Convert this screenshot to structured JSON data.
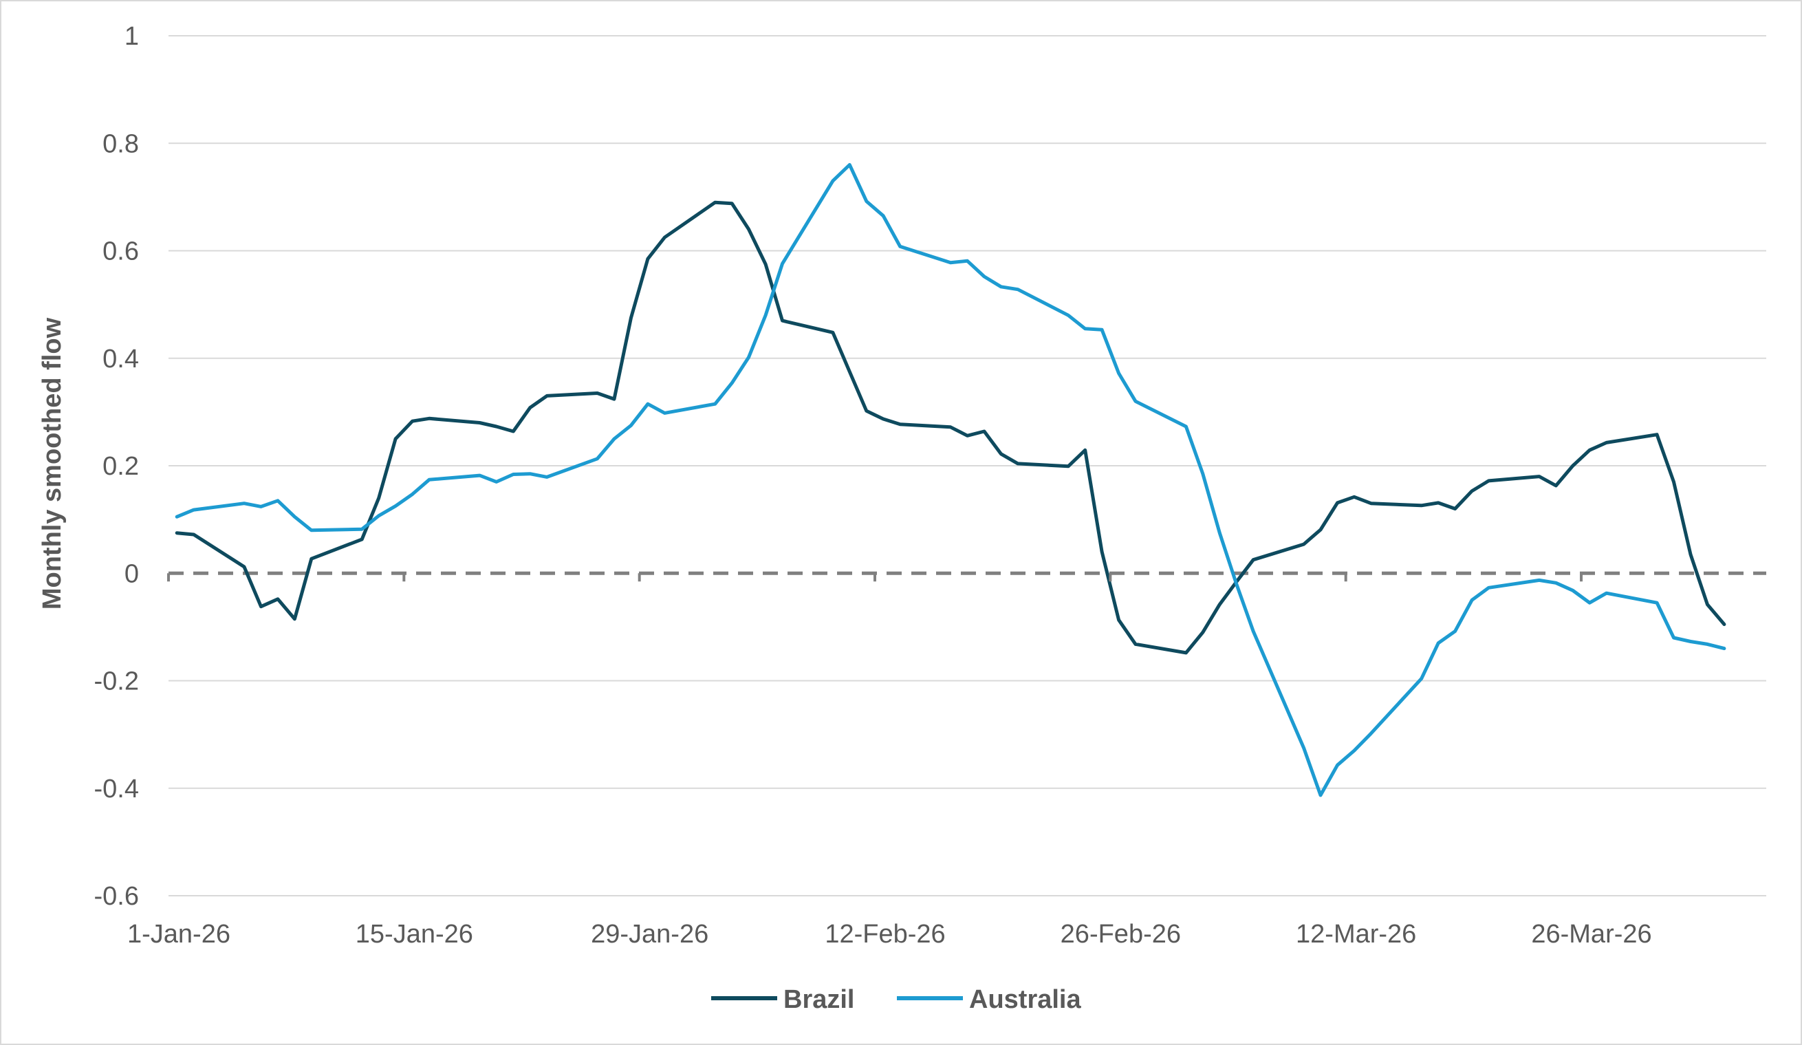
{
  "chart_data": {
    "type": "line",
    "title": "",
    "xlabel": "",
    "ylabel": "Monthly smoothed flow",
    "ylim": [
      -0.6,
      1
    ],
    "yticks": [
      1,
      0.8,
      0.6,
      0.4,
      0.2,
      0,
      -0.2,
      -0.4,
      -0.6
    ],
    "ytick_labels": [
      "1",
      "0.8",
      "0.6",
      "0.4",
      "0.2",
      "0",
      "-0.2",
      "-0.4",
      "-0.6"
    ],
    "xlim": [
      "2026-01-01",
      "2026-04-06"
    ],
    "xticks": [
      "2026-01-01",
      "2026-01-15",
      "2026-01-29",
      "2026-02-12",
      "2026-02-26",
      "2026-03-12",
      "2026-03-26"
    ],
    "xtick_labels": [
      "1-Jan-26",
      "15-Jan-26",
      "29-Jan-26",
      "12-Feb-26",
      "26-Feb-26",
      "12-Mar-26",
      "26-Mar-26"
    ],
    "grid": true,
    "zero_line": "dashed",
    "legend_position": "bottom",
    "series": [
      {
        "name": "Brazil",
        "color": "#0e4a5e",
        "points": [
          [
            "2026-01-01",
            0.075
          ],
          [
            "2026-01-02",
            0.072
          ],
          [
            "2026-01-05",
            0.012
          ],
          [
            "2026-01-06",
            -0.062
          ],
          [
            "2026-01-07",
            -0.048
          ],
          [
            "2026-01-08",
            -0.085
          ],
          [
            "2026-01-09",
            0.027
          ],
          [
            "2026-01-12",
            0.063
          ],
          [
            "2026-01-13",
            0.14
          ],
          [
            "2026-01-14",
            0.25
          ],
          [
            "2026-01-15",
            0.283
          ],
          [
            "2026-01-16",
            0.288
          ],
          [
            "2026-01-19",
            0.28
          ],
          [
            "2026-01-20",
            0.273
          ],
          [
            "2026-01-21",
            0.264
          ],
          [
            "2026-01-22",
            0.308
          ],
          [
            "2026-01-23",
            0.33
          ],
          [
            "2026-01-26",
            0.335
          ],
          [
            "2026-01-27",
            0.324
          ],
          [
            "2026-01-28",
            0.475
          ],
          [
            "2026-01-29",
            0.585
          ],
          [
            "2026-01-30",
            0.625
          ],
          [
            "2026-02-02",
            0.69
          ],
          [
            "2026-02-03",
            0.688
          ],
          [
            "2026-02-04",
            0.64
          ],
          [
            "2026-02-05",
            0.575
          ],
          [
            "2026-02-06",
            0.47
          ],
          [
            "2026-02-09",
            0.448
          ],
          [
            "2026-02-10",
            0.375
          ],
          [
            "2026-02-11",
            0.302
          ],
          [
            "2026-02-12",
            0.287
          ],
          [
            "2026-02-13",
            0.277
          ],
          [
            "2026-02-16",
            0.272
          ],
          [
            "2026-02-17",
            0.256
          ],
          [
            "2026-02-18",
            0.264
          ],
          [
            "2026-02-19",
            0.222
          ],
          [
            "2026-02-20",
            0.204
          ],
          [
            "2026-02-23",
            0.199
          ],
          [
            "2026-02-24",
            0.229
          ],
          [
            "2026-02-25",
            0.04
          ],
          [
            "2026-02-26",
            -0.087
          ],
          [
            "2026-02-27",
            -0.132
          ],
          [
            "2026-03-02",
            -0.148
          ],
          [
            "2026-03-03",
            -0.11
          ],
          [
            "2026-03-04",
            -0.058
          ],
          [
            "2026-03-05",
            -0.016
          ],
          [
            "2026-03-06",
            0.025
          ],
          [
            "2026-03-09",
            0.054
          ],
          [
            "2026-03-10",
            0.081
          ],
          [
            "2026-03-11",
            0.131
          ],
          [
            "2026-03-12",
            0.142
          ],
          [
            "2026-03-13",
            0.13
          ],
          [
            "2026-03-16",
            0.126
          ],
          [
            "2026-03-17",
            0.131
          ],
          [
            "2026-03-18",
            0.12
          ],
          [
            "2026-03-19",
            0.153
          ],
          [
            "2026-03-20",
            0.172
          ],
          [
            "2026-03-23",
            0.18
          ],
          [
            "2026-03-24",
            0.163
          ],
          [
            "2026-03-25",
            0.2
          ],
          [
            "2026-03-26",
            0.229
          ],
          [
            "2026-03-27",
            0.243
          ],
          [
            "2026-03-30",
            0.258
          ],
          [
            "2026-03-31",
            0.17
          ],
          [
            "2026-04-01",
            0.035
          ],
          [
            "2026-04-02",
            -0.058
          ],
          [
            "2026-04-03",
            -0.095
          ]
        ]
      },
      {
        "name": "Australia",
        "color": "#1d9bd1",
        "points": [
          [
            "2026-01-01",
            0.105
          ],
          [
            "2026-01-02",
            0.118
          ],
          [
            "2026-01-05",
            0.13
          ],
          [
            "2026-01-06",
            0.124
          ],
          [
            "2026-01-07",
            0.135
          ],
          [
            "2026-01-08",
            0.105
          ],
          [
            "2026-01-09",
            0.08
          ],
          [
            "2026-01-12",
            0.082
          ],
          [
            "2026-01-13",
            0.107
          ],
          [
            "2026-01-14",
            0.125
          ],
          [
            "2026-01-15",
            0.147
          ],
          [
            "2026-01-16",
            0.174
          ],
          [
            "2026-01-19",
            0.182
          ],
          [
            "2026-01-20",
            0.17
          ],
          [
            "2026-01-21",
            0.184
          ],
          [
            "2026-01-22",
            0.185
          ],
          [
            "2026-01-23",
            0.179
          ],
          [
            "2026-01-26",
            0.213
          ],
          [
            "2026-01-27",
            0.25
          ],
          [
            "2026-01-28",
            0.275
          ],
          [
            "2026-01-29",
            0.315
          ],
          [
            "2026-01-30",
            0.298
          ],
          [
            "2026-02-02",
            0.315
          ],
          [
            "2026-02-03",
            0.354
          ],
          [
            "2026-02-04",
            0.402
          ],
          [
            "2026-02-05",
            0.48
          ],
          [
            "2026-02-06",
            0.576
          ],
          [
            "2026-02-09",
            0.73
          ],
          [
            "2026-02-10",
            0.76
          ],
          [
            "2026-02-11",
            0.692
          ],
          [
            "2026-02-12",
            0.665
          ],
          [
            "2026-02-13",
            0.608
          ],
          [
            "2026-02-16",
            0.578
          ],
          [
            "2026-02-17",
            0.581
          ],
          [
            "2026-02-18",
            0.552
          ],
          [
            "2026-02-19",
            0.533
          ],
          [
            "2026-02-20",
            0.528
          ],
          [
            "2026-02-23",
            0.48
          ],
          [
            "2026-02-24",
            0.455
          ],
          [
            "2026-02-25",
            0.453
          ],
          [
            "2026-02-26",
            0.372
          ],
          [
            "2026-02-27",
            0.32
          ],
          [
            "2026-03-02",
            0.273
          ],
          [
            "2026-03-03",
            0.185
          ],
          [
            "2026-03-04",
            0.075
          ],
          [
            "2026-03-05",
            -0.02
          ],
          [
            "2026-03-06",
            -0.108
          ],
          [
            "2026-03-09",
            -0.325
          ],
          [
            "2026-03-10",
            -0.413
          ],
          [
            "2026-03-11",
            -0.357
          ],
          [
            "2026-03-12",
            -0.33
          ],
          [
            "2026-03-13",
            -0.298
          ],
          [
            "2026-03-16",
            -0.196
          ],
          [
            "2026-03-17",
            -0.13
          ],
          [
            "2026-03-18",
            -0.108
          ],
          [
            "2026-03-19",
            -0.05
          ],
          [
            "2026-03-20",
            -0.027
          ],
          [
            "2026-03-23",
            -0.013
          ],
          [
            "2026-03-24",
            -0.018
          ],
          [
            "2026-03-25",
            -0.032
          ],
          [
            "2026-03-26",
            -0.055
          ],
          [
            "2026-03-27",
            -0.037
          ],
          [
            "2026-03-30",
            -0.055
          ],
          [
            "2026-03-31",
            -0.12
          ],
          [
            "2026-04-01",
            -0.127
          ],
          [
            "2026-04-02",
            -0.132
          ],
          [
            "2026-04-03",
            -0.14
          ]
        ]
      }
    ]
  }
}
